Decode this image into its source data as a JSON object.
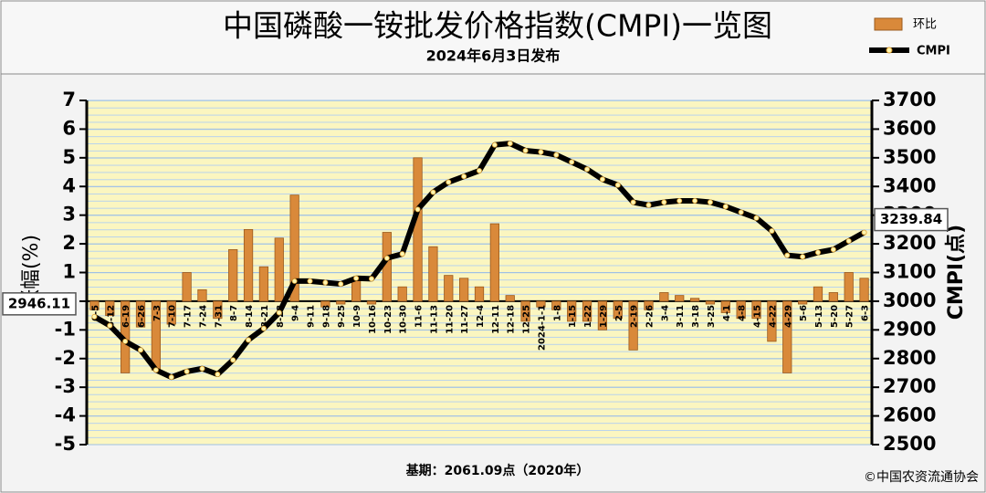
{
  "chart_data": {
    "type": "bar_line",
    "title": "中国磷酸一铵批发价格指数(CMPI)一览图",
    "subtitle": "2024年6月3日发布",
    "ylabel": "涨幅(%)",
    "y2label": "CMPI(点)",
    "footer": "基期：2061.09点（2020年）",
    "source": "©中国农资流通协会",
    "categories": [
      "6-5",
      "6-12",
      "6-19",
      "6-26",
      "7-3",
      "7-10",
      "7-17",
      "7-24",
      "7-31",
      "8-7",
      "8-14",
      "8-21",
      "8-28",
      "9-4",
      "9-11",
      "9-18",
      "9-25",
      "10-9",
      "10-16",
      "10-23",
      "10-30",
      "11-6",
      "11-13",
      "11-20",
      "11-27",
      "12-4",
      "12-11",
      "12-18",
      "12-25",
      "2024-1-1",
      "1-8",
      "1-15",
      "1-22",
      "1-29",
      "2-5",
      "2-19",
      "2-26",
      "3-4",
      "3-11",
      "3-18",
      "3-25",
      "4-1",
      "4-8",
      "4-15",
      "4-22",
      "4-29",
      "5-6",
      "5-13",
      "5-20",
      "5-27",
      "6-3"
    ],
    "series": [
      {
        "name": "环比",
        "color": "#d9893a",
        "axis": "y",
        "values": [
          -0.3,
          -0.5,
          -2.5,
          -0.9,
          -2.4,
          -0.8,
          1.0,
          0.4,
          -0.6,
          1.8,
          2.5,
          1.2,
          2.2,
          3.7,
          0.0,
          -0.2,
          -0.1,
          0.8,
          -0.1,
          2.4,
          0.5,
          5.0,
          1.9,
          0.9,
          0.8,
          0.5,
          2.7,
          0.2,
          -0.7,
          -0.2,
          -0.3,
          -0.7,
          -0.7,
          -1.0,
          -0.6,
          -1.7,
          -0.3,
          0.3,
          0.2,
          0.1,
          -0.1,
          -0.4,
          -0.6,
          -0.6,
          -1.4,
          -2.5,
          -0.1,
          0.5,
          0.3,
          1.0,
          0.8
        ]
      },
      {
        "name": "CMPI",
        "color": "#000000",
        "axis": "y2",
        "values": [
          2946.11,
          2915,
          2860,
          2830,
          2760,
          2735,
          2755,
          2765,
          2745,
          2795,
          2865,
          2905,
          2960,
          3070,
          3070,
          3065,
          3060,
          3080,
          3078,
          3150,
          3165,
          3320,
          3380,
          3415,
          3435,
          3455,
          3545,
          3550,
          3525,
          3520,
          3510,
          3485,
          3460,
          3425,
          3405,
          3345,
          3335,
          3345,
          3350,
          3350,
          3345,
          3330,
          3310,
          3290,
          3245,
          3160,
          3155,
          3170,
          3180,
          3210,
          3239.84
        ]
      }
    ],
    "ylim": [
      -5,
      7
    ],
    "yticks": [
      -5,
      -4,
      -3,
      -2,
      -1,
      0,
      1,
      2,
      3,
      4,
      5,
      6,
      7
    ],
    "y2lim": [
      2500,
      3700
    ],
    "y2ticks": [
      2500,
      2600,
      2700,
      2800,
      2900,
      3000,
      3100,
      3200,
      3300,
      3400,
      3500,
      3600,
      3700
    ],
    "grid": true
  }
}
